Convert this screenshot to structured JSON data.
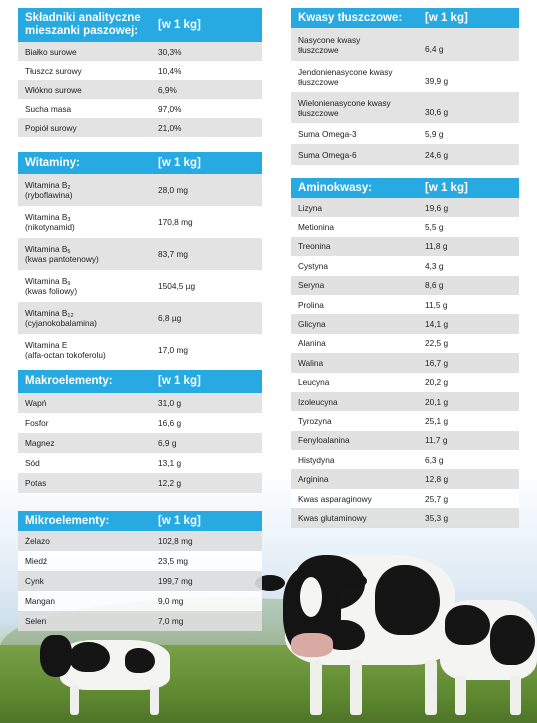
{
  "skladniki": {
    "header_line1": "Składniki analityczne",
    "header_line2": "mieszanki paszowej:",
    "header_unit": "[w 1 kg]",
    "rows": [
      {
        "name": "Białko surowe",
        "value": "30,3%"
      },
      {
        "name": "Tłuszcz surowy",
        "value": "10,4%"
      },
      {
        "name": "Włókno surowe",
        "value": "6,9%"
      },
      {
        "name": "Sucha masa",
        "value": "97,0%"
      },
      {
        "name": "Popiół surowy",
        "value": "21,0%"
      }
    ]
  },
  "witaminy": {
    "header": "Witaminy:",
    "header_unit": "[w 1 kg]",
    "rows": [
      {
        "name": "Witamina B",
        "sub": "2",
        "note": "(ryboflawina)",
        "value": "28,0 mg"
      },
      {
        "name": "Witamina B",
        "sub": "3",
        "note": "(nikotynamid)",
        "value": "170,8 mg"
      },
      {
        "name": "Witamina B",
        "sub": "5",
        "note": "(kwas pantotenowy)",
        "value": "83,7 mg"
      },
      {
        "name": "Witamina B",
        "sub": "9",
        "note": "(kwas foliowy)",
        "value": "1504,5 µg"
      },
      {
        "name": "Witamina B",
        "sub": "12",
        "note": "(cyjanokobalamina)",
        "value": "6,8 µg"
      },
      {
        "name": "Witamina E",
        "sub": "",
        "note": "(alfa-octan tokoferolu)",
        "value": "17,0 mg"
      }
    ]
  },
  "makroelementy": {
    "header": "Makroelementy:",
    "header_unit": "[w 1 kg]",
    "rows": [
      {
        "name": "Wapń",
        "value": "31,0 g"
      },
      {
        "name": "Fosfor",
        "value": "16,6 g"
      },
      {
        "name": "Magnez",
        "value": "6,9 g"
      },
      {
        "name": "Sód",
        "value": "13,1 g"
      },
      {
        "name": "Potas",
        "value": "12,2 g"
      }
    ]
  },
  "mikroelementy": {
    "header": "Mikroelementy:",
    "header_unit": "[w 1 kg]",
    "rows": [
      {
        "name": "Żelazo",
        "value": "102,8 mg"
      },
      {
        "name": "Miedź",
        "value": "23,5 mg"
      },
      {
        "name": "Cynk",
        "value": "199,7 mg"
      },
      {
        "name": "Mangan",
        "value": "9,0 mg"
      },
      {
        "name": "Selen",
        "value": "7,0 mg"
      }
    ]
  },
  "kwasy": {
    "header": "Kwasy tłuszczowe:",
    "header_unit": "[w 1 kg]",
    "rows": [
      {
        "line1": "Nasycone kwasy",
        "line2": "tłuszczowe",
        "value": "6,4 g"
      },
      {
        "line1": "Jendonienasycone kwasy",
        "line2": "tłuszczowe",
        "value": "39,9 g"
      },
      {
        "line1": "Wielonienasycone kwasy",
        "line2": "tłuszczowe",
        "value": "30,6 g"
      },
      {
        "line1": "Suma Omega-3",
        "line2": "",
        "value": "5,9 g"
      },
      {
        "line1": "Suma Omega-6",
        "line2": "",
        "value": "24,6 g"
      }
    ]
  },
  "aminokwasy": {
    "header": "Aminokwasy:",
    "header_unit": "[w 1 kg]",
    "rows": [
      {
        "name": "Lizyna",
        "value": "19,6 g"
      },
      {
        "name": "Metionina",
        "value": "5,5 g"
      },
      {
        "name": "Treonina",
        "value": "11,8 g"
      },
      {
        "name": "Cystyna",
        "value": "4,3 g"
      },
      {
        "name": "Seryna",
        "value": "8,6 g"
      },
      {
        "name": "Prolina",
        "value": "11,5 g"
      },
      {
        "name": "Glicyna",
        "value": "14,1 g"
      },
      {
        "name": "Alanina",
        "value": "22,5 g"
      },
      {
        "name": "Walina",
        "value": "16,7 g"
      },
      {
        "name": "Leucyna",
        "value": "20,2 g"
      },
      {
        "name": "Izoleucyna",
        "value": "20,1 g"
      },
      {
        "name": "Tyrozyna",
        "value": "25,1 g"
      },
      {
        "name": "Fenyloalanina",
        "value": "11,7 g"
      },
      {
        "name": "Histydyna",
        "value": "6,3 g"
      },
      {
        "name": "Arginina",
        "value": "12,8 g"
      },
      {
        "name": "Kwas asparaginowy",
        "value": "25,7 g"
      },
      {
        "name": "Kwas glutaminowy",
        "value": "35,3 g"
      }
    ]
  },
  "colors": {
    "header_blue": "#27a9e1",
    "row_gray": "#e3e3e3",
    "row_white": "#ffffff"
  },
  "background_image": "cows-in-meadow"
}
